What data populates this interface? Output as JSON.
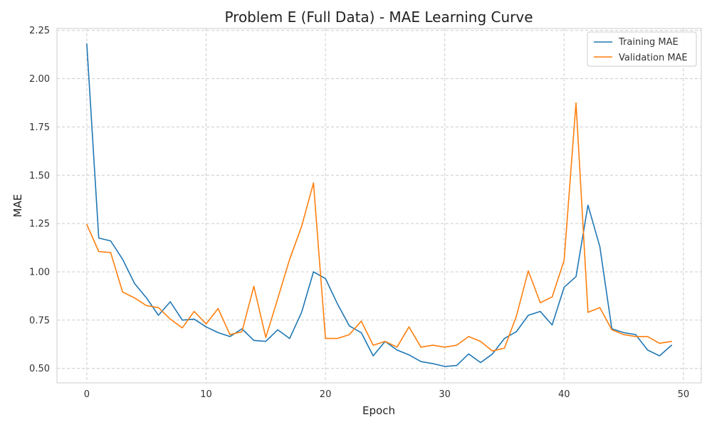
{
  "chart_data": {
    "type": "line",
    "title": "Problem E (Full Data) - MAE Learning Curve",
    "xlabel": "Epoch",
    "ylabel": "MAE",
    "xlim": [
      -2.5,
      51.5
    ],
    "ylim": [
      0.425,
      2.26
    ],
    "xticks": [
      0,
      10,
      20,
      30,
      40,
      50
    ],
    "yticks": [
      0.5,
      0.75,
      1.0,
      1.25,
      1.5,
      1.75,
      2.0,
      2.25
    ],
    "ytick_labels": [
      "0.50",
      "0.75",
      "1.00",
      "1.25",
      "1.50",
      "1.75",
      "2.00",
      "2.25"
    ],
    "grid": true,
    "legend_position": "top-right",
    "x": [
      0,
      1,
      2,
      3,
      4,
      5,
      6,
      7,
      8,
      9,
      10,
      11,
      12,
      13,
      14,
      15,
      16,
      17,
      18,
      19,
      20,
      21,
      22,
      23,
      24,
      25,
      26,
      27,
      28,
      29,
      30,
      31,
      32,
      33,
      34,
      35,
      36,
      37,
      38,
      39,
      40,
      41,
      42,
      43,
      44,
      45,
      46,
      47,
      48,
      49
    ],
    "series": [
      {
        "name": "Training MAE",
        "color": "#1f77b4",
        "values": [
          2.18,
          1.175,
          1.16,
          1.065,
          0.94,
          0.865,
          0.775,
          0.845,
          0.75,
          0.755,
          0.715,
          0.685,
          0.665,
          0.705,
          0.645,
          0.64,
          0.7,
          0.655,
          0.79,
          1.0,
          0.965,
          0.835,
          0.72,
          0.685,
          0.565,
          0.64,
          0.595,
          0.57,
          0.535,
          0.525,
          0.51,
          0.515,
          0.575,
          0.53,
          0.575,
          0.655,
          0.69,
          0.775,
          0.795,
          0.725,
          0.92,
          0.975,
          1.345,
          1.13,
          0.705,
          0.685,
          0.675,
          0.595,
          0.565,
          0.62
        ]
      },
      {
        "name": "Validation MAE",
        "color": "#ff7f0e",
        "values": [
          1.245,
          1.105,
          1.1,
          0.895,
          0.865,
          0.825,
          0.815,
          0.755,
          0.71,
          0.795,
          0.73,
          0.81,
          0.675,
          0.69,
          0.925,
          0.66,
          0.86,
          1.065,
          1.235,
          1.46,
          0.655,
          0.655,
          0.675,
          0.745,
          0.62,
          0.64,
          0.61,
          0.715,
          0.61,
          0.62,
          0.61,
          0.62,
          0.665,
          0.64,
          0.59,
          0.605,
          0.77,
          1.005,
          0.84,
          0.87,
          1.06,
          1.875,
          0.79,
          0.815,
          0.7,
          0.675,
          0.665,
          0.665,
          0.63,
          0.64
        ]
      }
    ]
  }
}
